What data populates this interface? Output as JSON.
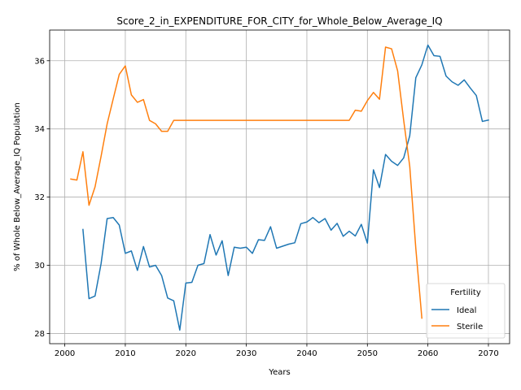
{
  "chart_data": {
    "type": "line",
    "title": "Score_2_in_EXPENDITURE_FOR_CITY_for_Whole_Below_Average_IQ",
    "xlabel": "Years",
    "ylabel": "% of Whole Below_Average_IQ Population",
    "xlim": [
      1997.5,
      2073.5
    ],
    "ylim": [
      27.7,
      36.9
    ],
    "xticks": [
      2000,
      2010,
      2020,
      2030,
      2040,
      2050,
      2060,
      2070
    ],
    "yticks": [
      28,
      30,
      32,
      34,
      36
    ],
    "grid": true,
    "legend": {
      "title": "Fertility",
      "position": "lower-right"
    },
    "series": [
      {
        "name": "Ideal",
        "color": "#1f77b4",
        "x": [
          2003,
          2004,
          2005,
          2006,
          2007,
          2008,
          2009,
          2010,
          2011,
          2012,
          2013,
          2014,
          2015,
          2016,
          2017,
          2018,
          2019,
          2020,
          2021,
          2022,
          2023,
          2024,
          2025,
          2026,
          2027,
          2028,
          2029,
          2030,
          2031,
          2032,
          2033,
          2034,
          2035,
          2036,
          2037,
          2038,
          2039,
          2040,
          2041,
          2042,
          2043,
          2044,
          2045,
          2046,
          2047,
          2048,
          2049,
          2050,
          2051,
          2052,
          2053,
          2054,
          2055,
          2056,
          2057,
          2058,
          2059,
          2060,
          2061,
          2062,
          2063,
          2064,
          2065,
          2066,
          2067,
          2068,
          2069,
          2070
        ],
        "values": [
          31.05,
          29.02,
          29.1,
          30.05,
          31.37,
          31.4,
          31.18,
          30.35,
          30.42,
          29.85,
          30.55,
          29.95,
          30.0,
          29.7,
          29.04,
          28.96,
          28.1,
          29.48,
          29.5,
          30.0,
          30.05,
          30.9,
          30.3,
          30.72,
          29.7,
          30.53,
          30.5,
          30.53,
          30.35,
          30.75,
          30.73,
          31.13,
          30.5,
          30.56,
          30.62,
          30.66,
          31.22,
          31.27,
          31.4,
          31.25,
          31.37,
          31.03,
          31.23,
          30.85,
          31.0,
          30.86,
          31.2,
          30.65,
          32.8,
          32.28,
          33.25,
          33.05,
          32.93,
          33.15,
          33.8,
          35.5,
          35.88,
          36.46,
          36.15,
          36.13,
          35.55,
          35.38,
          35.28,
          35.44,
          35.2,
          34.98,
          34.22,
          34.26
        ]
      },
      {
        "name": "Sterile",
        "color": "#ff7f0e",
        "x": [
          2001,
          2002,
          2003,
          2004,
          2005,
          2006,
          2007,
          2008,
          2009,
          2010,
          2011,
          2012,
          2013,
          2014,
          2015,
          2016,
          2017,
          2018,
          2019,
          2020,
          2025,
          2030,
          2035,
          2040,
          2045,
          2047,
          2048,
          2049,
          2050,
          2051,
          2052,
          2053,
          2054,
          2055,
          2056,
          2057,
          2058,
          2059
        ],
        "values": [
          32.53,
          32.5,
          33.33,
          31.76,
          32.3,
          33.2,
          34.15,
          34.88,
          35.6,
          35.85,
          35.0,
          34.78,
          34.86,
          34.25,
          34.15,
          33.93,
          33.93,
          34.25,
          34.25,
          34.25,
          34.25,
          34.25,
          34.25,
          34.25,
          34.25,
          34.25,
          34.55,
          34.52,
          34.83,
          35.07,
          34.87,
          36.4,
          36.35,
          35.7,
          34.25,
          32.9,
          30.5,
          28.45
        ]
      }
    ]
  }
}
